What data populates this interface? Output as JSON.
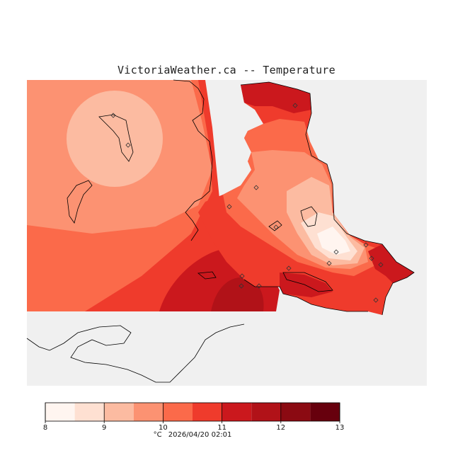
{
  "title": "VictoriaWeather.ca -- Temperature",
  "colors": {
    "background": "#ffffff",
    "nodata": "#f0f0f0",
    "coast": "#000000"
  },
  "legend": {
    "min": 8,
    "max": 13,
    "ticks": [
      "8",
      "9",
      "10",
      "11",
      "12",
      "13"
    ],
    "bins": [
      {
        "range": [
          8.0,
          8.5
        ],
        "color": "#fff5f0"
      },
      {
        "range": [
          8.5,
          9.0
        ],
        "color": "#fee0d2"
      },
      {
        "range": [
          9.0,
          9.5
        ],
        "color": "#fcbba1"
      },
      {
        "range": [
          9.5,
          10.0
        ],
        "color": "#fc9272"
      },
      {
        "range": [
          10.0,
          10.5
        ],
        "color": "#fb6a4a"
      },
      {
        "range": [
          10.5,
          11.0
        ],
        "color": "#ef3b2c"
      },
      {
        "range": [
          11.0,
          11.5
        ],
        "color": "#cb181d"
      },
      {
        "range": [
          11.5,
          12.0
        ],
        "color": "#b11218"
      },
      {
        "range": [
          12.0,
          12.5
        ],
        "color": "#8b0a12"
      },
      {
        "range": [
          12.5,
          13.0
        ],
        "color": "#67000d"
      }
    ]
  },
  "caption": {
    "unit": "°C",
    "timestamp": "2026/04/20 02:01"
  },
  "stations_count": 16
}
